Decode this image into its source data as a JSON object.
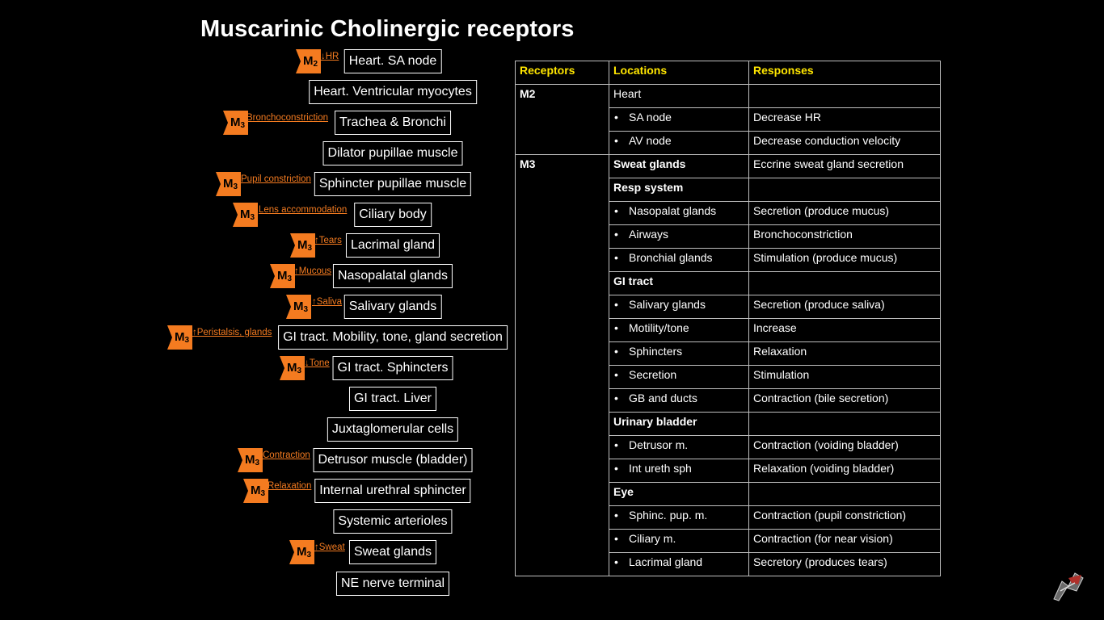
{
  "title": "Muscarinic Cholinergic receptors",
  "colors": {
    "accent": "#f47b20",
    "header_text": "#ffe600",
    "background": "#000000"
  },
  "left_items": [
    {
      "label": "Heart. SA node",
      "badge": "M",
      "sub": "2",
      "annotation": "↓HR"
    },
    {
      "label": "Heart. Ventricular myocytes"
    },
    {
      "label": "Trachea & Bronchi",
      "badge": "M",
      "sub": "3",
      "annotation": "Bronchoconstriction"
    },
    {
      "label": "Dilator pupillae muscle"
    },
    {
      "label": "Sphincter pupillae muscle",
      "badge": "M",
      "sub": "3",
      "annotation": "Pupil constriction"
    },
    {
      "label": "Ciliary body",
      "badge": "M",
      "sub": "3",
      "annotation": "Lens accommodation"
    },
    {
      "label": "Lacrimal gland",
      "badge": "M",
      "sub": "3",
      "annotation": "↑Tears"
    },
    {
      "label": "Nasopalatal glands",
      "badge": "M",
      "sub": "3",
      "annotation": "↑Mucous"
    },
    {
      "label": "Salivary glands",
      "badge": "M",
      "sub": "3",
      "annotation": "↑Saliva"
    },
    {
      "label": "GI tract. Mobility, tone, gland secretion",
      "badge": "M",
      "sub": "3",
      "annotation": "↑Peristalsis, glands"
    },
    {
      "label": "GI tract. Sphincters",
      "badge": "M",
      "sub": "3",
      "annotation": "↓Tone"
    },
    {
      "label": "GI tract. Liver"
    },
    {
      "label": "Juxtaglomerular cells"
    },
    {
      "label": "Detrusor muscle (bladder)",
      "badge": "M",
      "sub": "3",
      "annotation": "Contraction"
    },
    {
      "label": "Internal urethral sphincter",
      "badge": "M",
      "sub": "3",
      "annotation": "Relaxation"
    },
    {
      "label": "Systemic arterioles"
    },
    {
      "label": "Sweat glands",
      "badge": "M",
      "sub": "3",
      "annotation": "↑Sweat"
    },
    {
      "label": "NE nerve terminal"
    }
  ],
  "table": {
    "headers": [
      "Receptors",
      "Locations",
      "Responses"
    ],
    "rows": [
      [
        "M2",
        "Heart",
        ""
      ],
      [
        "",
        "SA node",
        "Decrease HR"
      ],
      [
        "",
        "AV node",
        "Decrease conduction velocity"
      ],
      [
        "M3",
        "Sweat glands",
        "Eccrine sweat gland secretion"
      ],
      [
        "",
        "Resp system",
        ""
      ],
      [
        "",
        "Nasopalat glands",
        "Secretion (produce mucus)"
      ],
      [
        "",
        "Airways",
        "Bronchoconstriction"
      ],
      [
        "",
        "Bronchial glands",
        "Stimulation (produce mucus)"
      ],
      [
        "",
        "GI tract",
        ""
      ],
      [
        "",
        "Salivary glands",
        "Secretion (produce saliva)"
      ],
      [
        "",
        "Motility/tone",
        "Increase"
      ],
      [
        "",
        "Sphincters",
        "Relaxation"
      ],
      [
        "",
        "Secretion",
        "Stimulation"
      ],
      [
        "",
        "GB and ducts",
        "Contraction (bile secretion)"
      ],
      [
        "",
        "Urinary bladder",
        ""
      ],
      [
        "",
        "Detrusor m.",
        "Contraction (voiding bladder)"
      ],
      [
        "",
        "Int ureth sph",
        "Relaxation (voiding bladder)"
      ],
      [
        "",
        "Eye",
        ""
      ],
      [
        "",
        "Sphinc. pup. m.",
        "Contraction (pupil constriction)"
      ],
      [
        "",
        "Ciliary m.",
        "Contraction (for near vision)"
      ],
      [
        "",
        "Lacrimal gland",
        "Secretory (produces tears)"
      ]
    ]
  }
}
